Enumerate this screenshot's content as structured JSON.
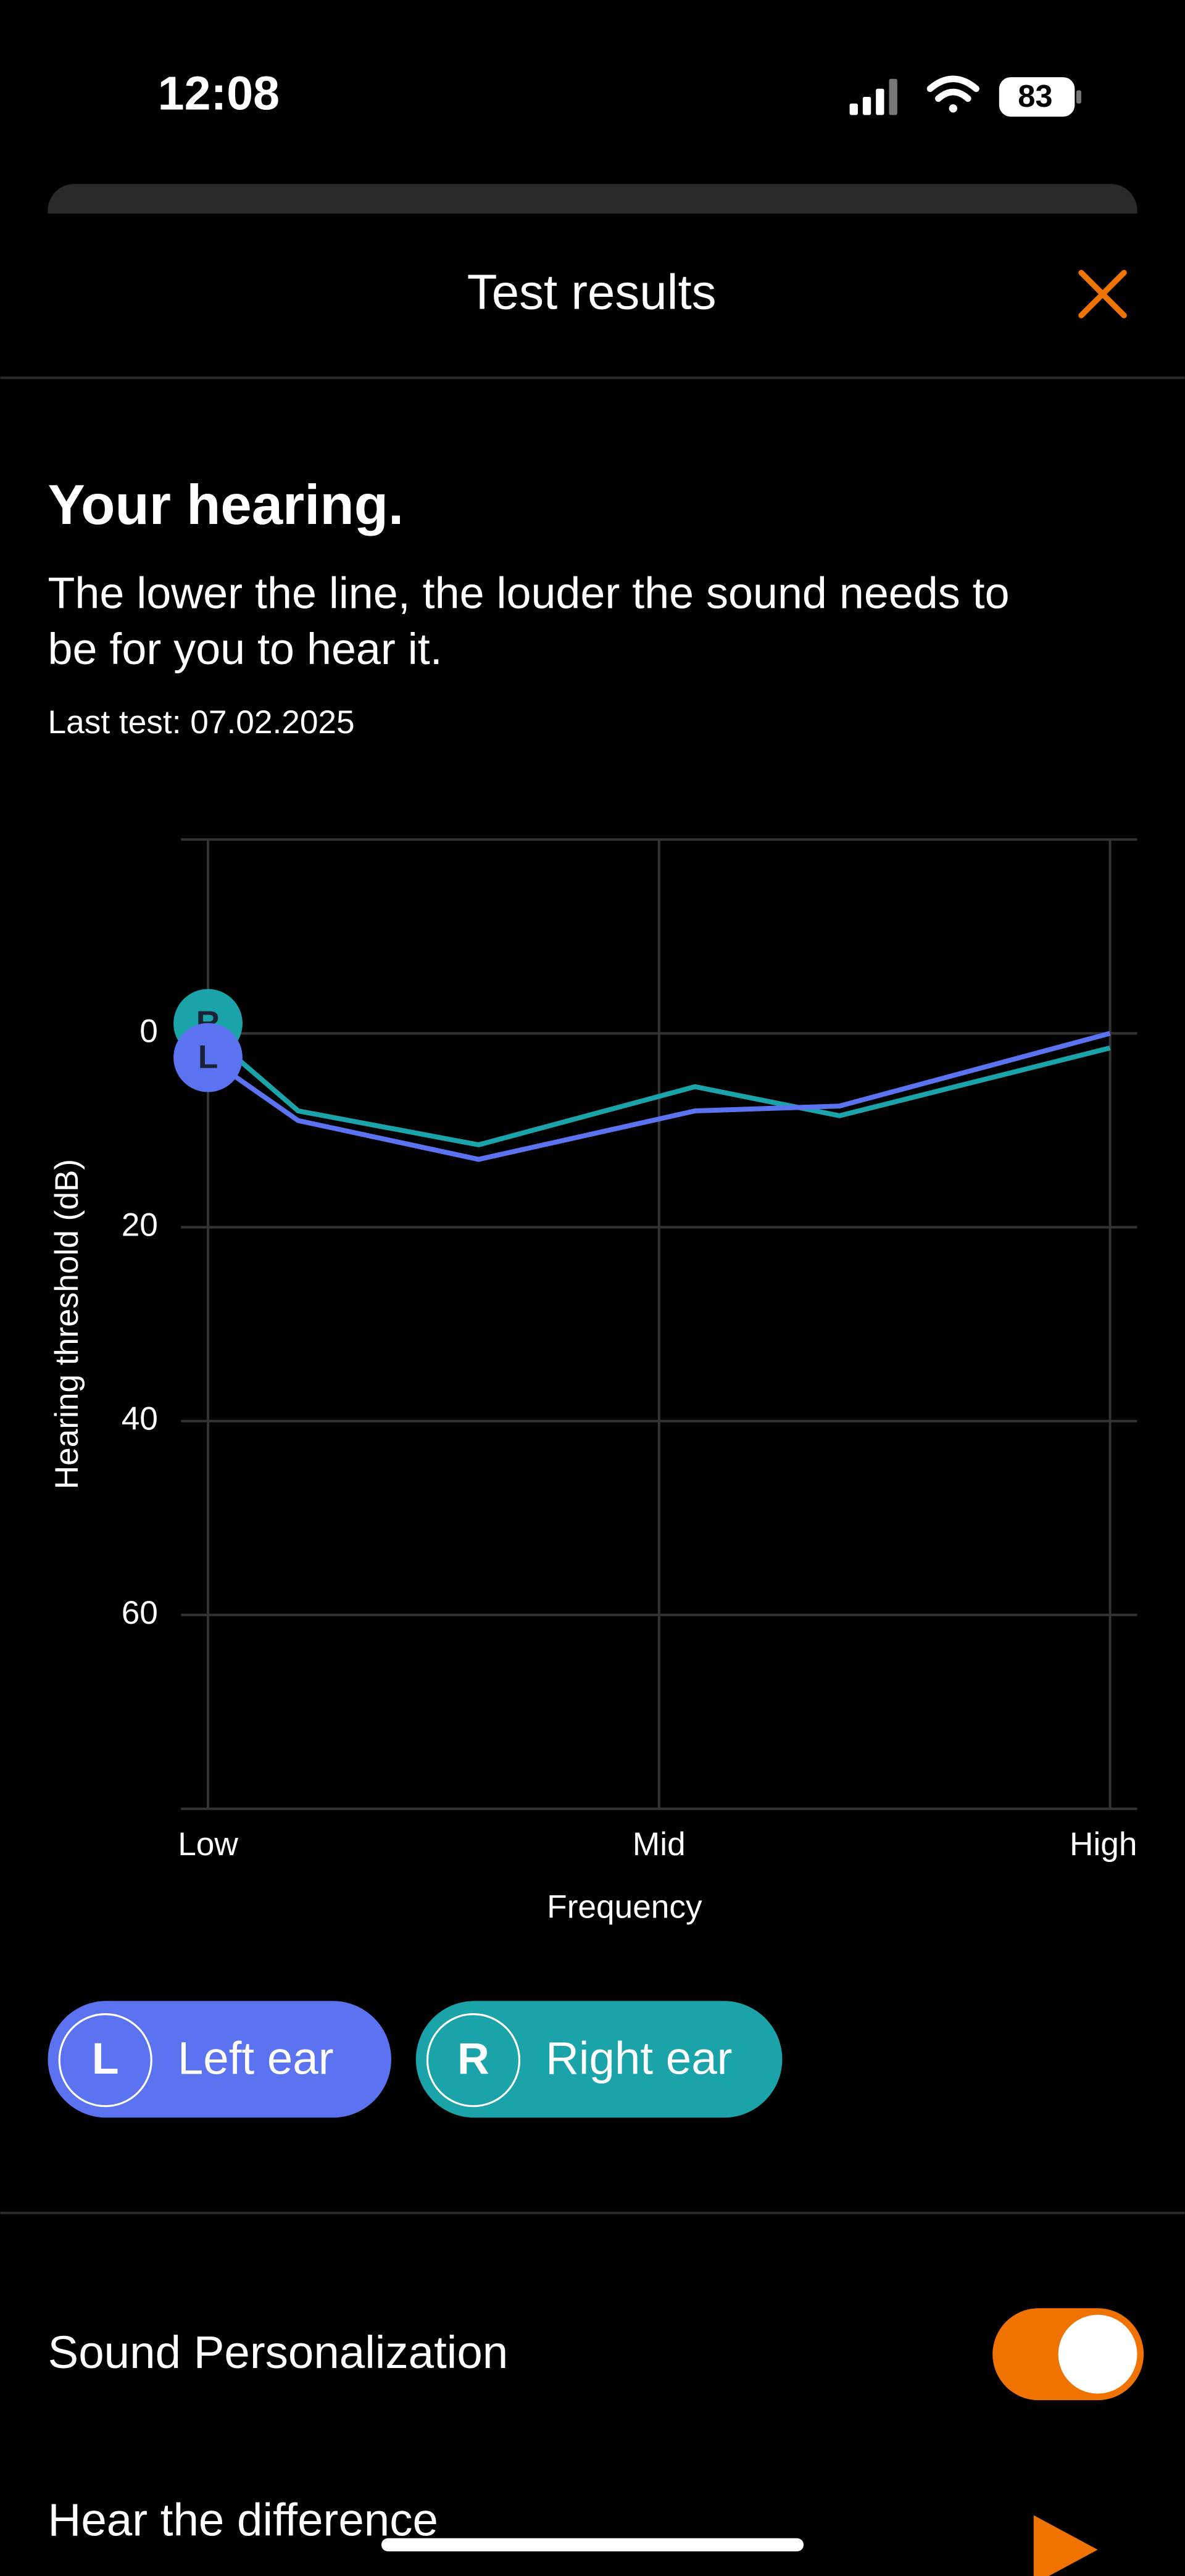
{
  "status_bar": {
    "time": "12:08",
    "battery": "83"
  },
  "header": {
    "title": "Test results"
  },
  "intro": {
    "heading": "Your hearing.",
    "description": [
      "The lower the line, the louder the sound needs to",
      "be for you to hear it."
    ],
    "last_test": "Last test: 07.02.2025"
  },
  "chart_data": {
    "type": "line",
    "ylabel": "Hearing threshold (dB)",
    "xlabel": "Frequency",
    "x": [
      0,
      0.1,
      0.3,
      0.54,
      0.7,
      1
    ],
    "xlim": [
      -0.03,
      1.03
    ],
    "xticks": [
      {
        "value": 0,
        "label": "Low"
      },
      {
        "value": 0.5,
        "label": "Mid"
      },
      {
        "value": 1,
        "label": "High"
      }
    ],
    "ylim": [
      -20,
      80
    ],
    "y_inverted": true,
    "yticks": [
      0,
      20,
      40,
      60
    ],
    "grid": true,
    "series": [
      {
        "name": "Right ear",
        "label": "R",
        "color": "#1aa3a8",
        "values": [
          0,
          8,
          11.5,
          5.5,
          8.5,
          1.5
        ]
      },
      {
        "name": "Left ear",
        "label": "L",
        "color": "#5b73f0",
        "values": [
          2.5,
          9,
          13,
          8,
          7.5,
          0
        ]
      }
    ]
  },
  "settings": [
    {
      "label": "Sound Personalization",
      "enabled": true
    },
    {
      "label": "Hear the difference"
    }
  ]
}
